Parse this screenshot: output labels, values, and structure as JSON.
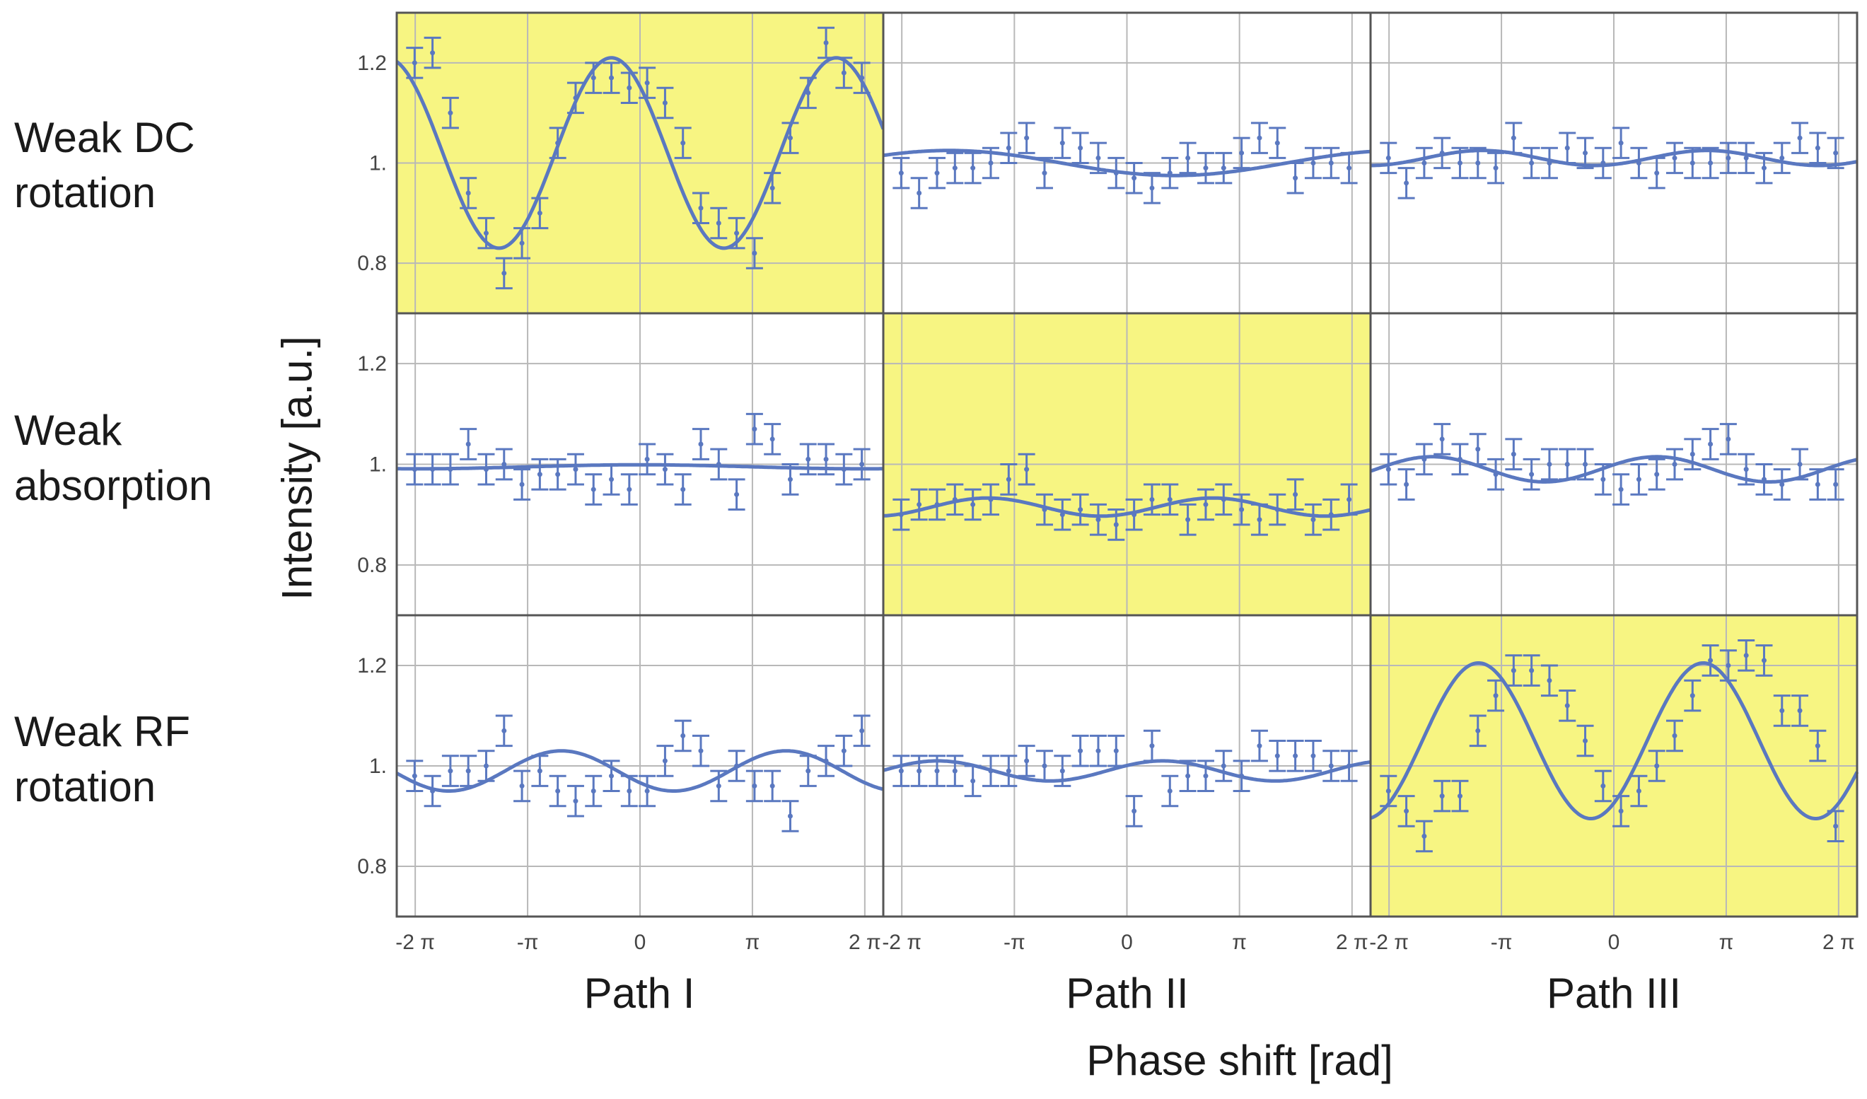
{
  "figure": {
    "row_labels": [
      "Weak DC\nrotation",
      "Weak\nabsorption",
      "Weak RF\nrotation"
    ],
    "column_labels": [
      "Path I",
      "Path II",
      "Path III"
    ],
    "x_axis_title": "Phase shift [rad]",
    "y_axis_title": "Intensity  [a.u.]"
  },
  "colors": {
    "highlight": "#f7f582",
    "series": "#5a78c0",
    "grid": "#b8b8b8",
    "frame": "#555555"
  },
  "chart_data": {
    "type": "scatter",
    "xlim": [
      -6.8,
      6.8
    ],
    "ylim": [
      0.7,
      1.3
    ],
    "x_ticks": [
      {
        "value": -6.2832,
        "label": "-2 π"
      },
      {
        "value": -3.1416,
        "label": "-π"
      },
      {
        "value": 0,
        "label": "0"
      },
      {
        "value": 3.1416,
        "label": "π"
      },
      {
        "value": 6.2832,
        "label": "2 π"
      }
    ],
    "y_ticks": [
      {
        "value": 0.8,
        "label": "0.8"
      },
      {
        "value": 1.0,
        "label": "1."
      },
      {
        "value": 1.2,
        "label": "1.2"
      }
    ],
    "panels": [
      {
        "row": 0,
        "col": 0,
        "highlighted": true,
        "fit": {
          "offset": 1.02,
          "amplitude": 0.19,
          "frequency": 1.0,
          "phase": 0.8
        },
        "points": [
          [
            -6.3,
            1.2
          ],
          [
            -5.8,
            1.22
          ],
          [
            -5.3,
            1.1
          ],
          [
            -4.8,
            0.94
          ],
          [
            -4.3,
            0.86
          ],
          [
            -3.8,
            0.78
          ],
          [
            -3.3,
            0.84
          ],
          [
            -2.8,
            0.9
          ],
          [
            -2.3,
            1.04
          ],
          [
            -1.8,
            1.13
          ],
          [
            -1.3,
            1.17
          ],
          [
            -0.8,
            1.17
          ],
          [
            -0.3,
            1.15
          ],
          [
            0.2,
            1.16
          ],
          [
            0.7,
            1.12
          ],
          [
            1.2,
            1.04
          ],
          [
            1.7,
            0.91
          ],
          [
            2.2,
            0.88
          ],
          [
            2.7,
            0.86
          ],
          [
            3.2,
            0.82
          ],
          [
            3.7,
            0.95
          ],
          [
            4.2,
            1.05
          ],
          [
            4.7,
            1.14
          ],
          [
            5.2,
            1.24
          ],
          [
            5.7,
            1.18
          ],
          [
            6.2,
            1.17
          ]
        ]
      },
      {
        "row": 0,
        "col": 1,
        "highlighted": false,
        "fit": {
          "offset": 1.0,
          "amplitude": 0.025,
          "frequency": 0.5,
          "phase": -3.8
        },
        "points": [
          [
            -6.3,
            0.98
          ],
          [
            -5.8,
            0.94
          ],
          [
            -5.3,
            0.98
          ],
          [
            -4.8,
            0.99
          ],
          [
            -4.3,
            0.99
          ],
          [
            -3.8,
            1.0
          ],
          [
            -3.3,
            1.03
          ],
          [
            -2.8,
            1.05
          ],
          [
            -2.3,
            0.98
          ],
          [
            -1.8,
            1.04
          ],
          [
            -1.3,
            1.03
          ],
          [
            -0.8,
            1.01
          ],
          [
            -0.3,
            0.98
          ],
          [
            0.2,
            0.97
          ],
          [
            0.7,
            0.95
          ],
          [
            1.2,
            0.98
          ],
          [
            1.7,
            1.01
          ],
          [
            2.2,
            0.99
          ],
          [
            2.7,
            0.99
          ],
          [
            3.2,
            1.02
          ],
          [
            3.7,
            1.05
          ],
          [
            4.2,
            1.04
          ],
          [
            4.7,
            0.97
          ],
          [
            5.2,
            1.0
          ],
          [
            5.7,
            1.0
          ],
          [
            6.2,
            0.99
          ]
        ]
      },
      {
        "row": 0,
        "col": 2,
        "highlighted": false,
        "fit": {
          "offset": 1.01,
          "amplitude": 0.015,
          "frequency": 1.0,
          "phase": -2.6
        },
        "points": [
          [
            -6.3,
            1.01
          ],
          [
            -5.8,
            0.96
          ],
          [
            -5.3,
            1.0
          ],
          [
            -4.8,
            1.02
          ],
          [
            -4.3,
            1.0
          ],
          [
            -3.8,
            1.0
          ],
          [
            -3.3,
            0.99
          ],
          [
            -2.8,
            1.05
          ],
          [
            -2.3,
            1.0
          ],
          [
            -1.8,
            1.0
          ],
          [
            -1.3,
            1.03
          ],
          [
            -0.8,
            1.02
          ],
          [
            -0.3,
            1.0
          ],
          [
            0.2,
            1.04
          ],
          [
            0.7,
            1.0
          ],
          [
            1.2,
            0.98
          ],
          [
            1.7,
            1.01
          ],
          [
            2.2,
            1.0
          ],
          [
            2.7,
            1.0
          ],
          [
            3.2,
            1.01
          ],
          [
            3.7,
            1.01
          ],
          [
            4.2,
            0.99
          ],
          [
            4.7,
            1.01
          ],
          [
            5.2,
            1.05
          ],
          [
            5.7,
            1.03
          ],
          [
            6.2,
            1.02
          ]
        ]
      },
      {
        "row": 1,
        "col": 0,
        "highlighted": false,
        "fit": {
          "offset": 0.995,
          "amplitude": 0.004,
          "frequency": 0.5,
          "phase": 0.0
        },
        "points": [
          [
            -6.3,
            0.99
          ],
          [
            -5.8,
            0.99
          ],
          [
            -5.3,
            0.99
          ],
          [
            -4.8,
            1.04
          ],
          [
            -4.3,
            0.99
          ],
          [
            -3.8,
            1.0
          ],
          [
            -3.3,
            0.96
          ],
          [
            -2.8,
            0.98
          ],
          [
            -2.3,
            0.98
          ],
          [
            -1.8,
            0.99
          ],
          [
            -1.3,
            0.95
          ],
          [
            -0.8,
            0.97
          ],
          [
            -0.3,
            0.95
          ],
          [
            0.2,
            1.01
          ],
          [
            0.7,
            0.99
          ],
          [
            1.2,
            0.95
          ],
          [
            1.7,
            1.04
          ],
          [
            2.2,
            1.0
          ],
          [
            2.7,
            0.94
          ],
          [
            3.2,
            1.07
          ],
          [
            3.7,
            1.05
          ],
          [
            4.2,
            0.97
          ],
          [
            4.7,
            1.01
          ],
          [
            5.2,
            1.01
          ],
          [
            5.7,
            0.99
          ],
          [
            6.2,
            1.0
          ]
        ]
      },
      {
        "row": 1,
        "col": 1,
        "highlighted": true,
        "fit": {
          "offset": 0.915,
          "amplitude": 0.018,
          "frequency": 1.0,
          "phase": -2.4
        },
        "points": [
          [
            -6.3,
            0.9
          ],
          [
            -5.8,
            0.92
          ],
          [
            -5.3,
            0.92
          ],
          [
            -4.8,
            0.93
          ],
          [
            -4.3,
            0.92
          ],
          [
            -3.8,
            0.93
          ],
          [
            -3.3,
            0.97
          ],
          [
            -2.8,
            0.99
          ],
          [
            -2.3,
            0.91
          ],
          [
            -1.8,
            0.9
          ],
          [
            -1.3,
            0.91
          ],
          [
            -0.8,
            0.89
          ],
          [
            -0.3,
            0.88
          ],
          [
            0.2,
            0.9
          ],
          [
            0.7,
            0.93
          ],
          [
            1.2,
            0.93
          ],
          [
            1.7,
            0.89
          ],
          [
            2.2,
            0.92
          ],
          [
            2.7,
            0.93
          ],
          [
            3.2,
            0.91
          ],
          [
            3.7,
            0.89
          ],
          [
            4.2,
            0.91
          ],
          [
            4.7,
            0.94
          ],
          [
            5.2,
            0.89
          ],
          [
            5.7,
            0.9
          ],
          [
            6.2,
            0.93
          ]
        ]
      },
      {
        "row": 1,
        "col": 2,
        "highlighted": false,
        "fit": {
          "offset": 0.99,
          "amplitude": 0.025,
          "frequency": 1.0,
          "phase": -1.2
        },
        "points": [
          [
            -6.3,
            0.99
          ],
          [
            -5.8,
            0.96
          ],
          [
            -5.3,
            1.01
          ],
          [
            -4.8,
            1.05
          ],
          [
            -4.3,
            1.01
          ],
          [
            -3.8,
            1.03
          ],
          [
            -3.3,
            0.98
          ],
          [
            -2.8,
            1.02
          ],
          [
            -2.3,
            0.98
          ],
          [
            -1.8,
            1.0
          ],
          [
            -1.3,
            1.0
          ],
          [
            -0.8,
            1.0
          ],
          [
            -0.3,
            0.97
          ],
          [
            0.2,
            0.95
          ],
          [
            0.7,
            0.97
          ],
          [
            1.2,
            0.98
          ],
          [
            1.7,
            1.0
          ],
          [
            2.2,
            1.02
          ],
          [
            2.7,
            1.04
          ],
          [
            3.2,
            1.05
          ],
          [
            3.7,
            0.99
          ],
          [
            4.2,
            0.97
          ],
          [
            4.7,
            0.96
          ],
          [
            5.2,
            1.0
          ],
          [
            5.7,
            0.96
          ],
          [
            6.2,
            0.96
          ]
        ]
      },
      {
        "row": 2,
        "col": 0,
        "highlighted": false,
        "fit": {
          "offset": 0.99,
          "amplitude": 0.04,
          "frequency": 1.0,
          "phase": 2.2
        },
        "points": [
          [
            -6.3,
            0.98
          ],
          [
            -5.8,
            0.95
          ],
          [
            -5.3,
            0.99
          ],
          [
            -4.8,
            0.99
          ],
          [
            -4.3,
            1.0
          ],
          [
            -3.8,
            1.07
          ],
          [
            -3.3,
            0.96
          ],
          [
            -2.8,
            0.99
          ],
          [
            -2.3,
            0.95
          ],
          [
            -1.8,
            0.93
          ],
          [
            -1.3,
            0.95
          ],
          [
            -0.8,
            0.98
          ],
          [
            -0.3,
            0.95
          ],
          [
            0.2,
            0.95
          ],
          [
            0.7,
            1.01
          ],
          [
            1.2,
            1.06
          ],
          [
            1.7,
            1.03
          ],
          [
            2.2,
            0.96
          ],
          [
            2.7,
            1.0
          ],
          [
            3.2,
            0.96
          ],
          [
            3.7,
            0.96
          ],
          [
            4.2,
            0.9
          ],
          [
            4.7,
            0.99
          ],
          [
            5.2,
            1.01
          ],
          [
            5.7,
            1.03
          ],
          [
            6.2,
            1.07
          ]
        ]
      },
      {
        "row": 2,
        "col": 1,
        "highlighted": false,
        "fit": {
          "offset": 0.99,
          "amplitude": 0.02,
          "frequency": 1.0,
          "phase": -1.0
        },
        "points": [
          [
            -6.3,
            0.99
          ],
          [
            -5.8,
            0.99
          ],
          [
            -5.3,
            0.99
          ],
          [
            -4.8,
            0.99
          ],
          [
            -4.3,
            0.97
          ],
          [
            -3.8,
            0.99
          ],
          [
            -3.3,
            0.99
          ],
          [
            -2.8,
            1.01
          ],
          [
            -2.3,
            1.0
          ],
          [
            -1.8,
            0.99
          ],
          [
            -1.3,
            1.03
          ],
          [
            -0.8,
            1.03
          ],
          [
            -0.3,
            1.03
          ],
          [
            0.2,
            0.91
          ],
          [
            0.7,
            1.04
          ],
          [
            1.2,
            0.95
          ],
          [
            1.7,
            0.98
          ],
          [
            2.2,
            0.98
          ],
          [
            2.7,
            1.0
          ],
          [
            3.2,
            0.98
          ],
          [
            3.7,
            1.04
          ],
          [
            4.2,
            1.02
          ],
          [
            4.7,
            1.02
          ],
          [
            5.2,
            1.02
          ],
          [
            5.7,
            1.0
          ],
          [
            6.2,
            1.0
          ]
        ]
      },
      {
        "row": 2,
        "col": 2,
        "highlighted": true,
        "fit": {
          "offset": 1.05,
          "amplitude": 0.155,
          "frequency": 1.0,
          "phase": -2.5
        },
        "points": [
          [
            -6.3,
            0.95
          ],
          [
            -5.8,
            0.91
          ],
          [
            -5.3,
            0.86
          ],
          [
            -4.8,
            0.94
          ],
          [
            -4.3,
            0.94
          ],
          [
            -3.8,
            1.07
          ],
          [
            -3.3,
            1.14
          ],
          [
            -2.8,
            1.19
          ],
          [
            -2.3,
            1.19
          ],
          [
            -1.8,
            1.17
          ],
          [
            -1.3,
            1.12
          ],
          [
            -0.8,
            1.05
          ],
          [
            -0.3,
            0.96
          ],
          [
            0.2,
            0.91
          ],
          [
            0.7,
            0.95
          ],
          [
            1.2,
            1.0
          ],
          [
            1.7,
            1.06
          ],
          [
            2.2,
            1.14
          ],
          [
            2.7,
            1.21
          ],
          [
            3.2,
            1.2
          ],
          [
            3.7,
            1.22
          ],
          [
            4.2,
            1.21
          ],
          [
            4.7,
            1.11
          ],
          [
            5.2,
            1.11
          ],
          [
            5.7,
            1.04
          ],
          [
            6.2,
            0.88
          ]
        ]
      }
    ],
    "error_bar": 0.03
  }
}
